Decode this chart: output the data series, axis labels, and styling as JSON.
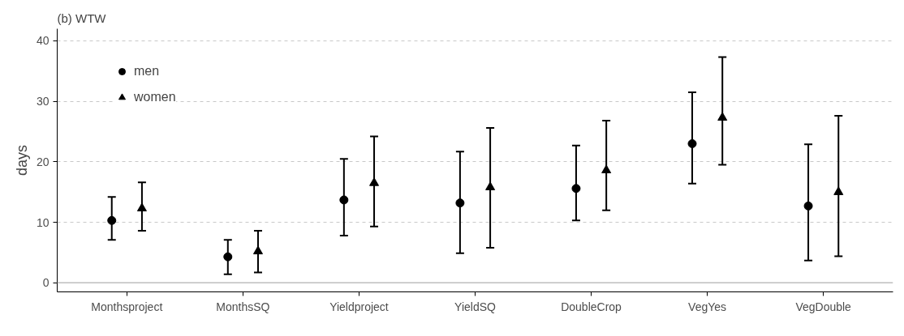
{
  "chart_data": {
    "type": "scatter",
    "title": "(b) WTW",
    "ylabel": "days",
    "categories": [
      "Monthsproject",
      "MonthsSQ",
      "Yieldproject",
      "YieldSQ",
      "DoubleCrop",
      "VegYes",
      "VegDouble"
    ],
    "series": [
      {
        "name": "men",
        "color": "#000000",
        "marker": "circle",
        "values": [
          10.3,
          4.3,
          13.7,
          13.2,
          15.6,
          23.0,
          12.7
        ],
        "errors": [
          [
            7.1,
            14.2
          ],
          [
            1.4,
            7.1
          ],
          [
            7.8,
            20.5
          ],
          [
            4.9,
            21.7
          ],
          [
            10.3,
            22.7
          ],
          [
            16.4,
            31.5
          ],
          [
            3.7,
            22.9
          ]
        ]
      },
      {
        "name": "women",
        "color": "#000000",
        "marker": "triangle",
        "values": [
          12.3,
          5.2,
          16.5,
          15.8,
          18.6,
          27.3,
          15.0
        ],
        "errors": [
          [
            8.6,
            16.6
          ],
          [
            1.7,
            8.6
          ],
          [
            9.3,
            24.2
          ],
          [
            5.8,
            25.6
          ],
          [
            12.0,
            26.8
          ],
          [
            19.5,
            37.3
          ],
          [
            4.4,
            27.6
          ]
        ]
      }
    ],
    "ylim": [
      -1.5,
      42
    ],
    "yticks": [
      0,
      10,
      20,
      30,
      40
    ],
    "grid": "y",
    "legend": "top left",
    "ref_lines": [
      {
        "axis": "y",
        "value": 0,
        "color": "#bebebe"
      }
    ]
  }
}
